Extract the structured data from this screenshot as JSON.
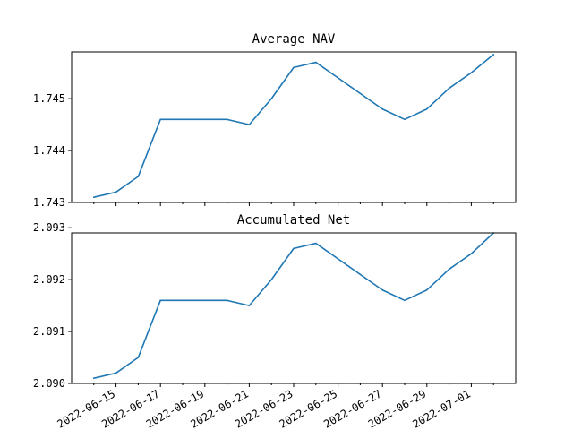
{
  "chart_data": [
    {
      "type": "line",
      "title": "Average NAV",
      "xlabel": "",
      "ylabel": "",
      "x": [
        "2022-06-14",
        "2022-06-15",
        "2022-06-16",
        "2022-06-17",
        "2022-06-20",
        "2022-06-21",
        "2022-06-22",
        "2022-06-23",
        "2022-06-24",
        "2022-06-27",
        "2022-06-28",
        "2022-06-29",
        "2022-06-30",
        "2022-07-01",
        "2022-07-02"
      ],
      "series": [
        {
          "name": "",
          "color": "#1f77b4",
          "values": [
            1.7431,
            1.7432,
            1.7435,
            1.7446,
            1.7446,
            1.7445,
            1.745,
            1.7456,
            1.7457,
            1.7448,
            1.7446,
            1.7448,
            1.7452,
            1.7455,
            1.74585
          ]
        }
      ],
      "xlim": [
        "2022-06-13",
        "2022-07-03"
      ],
      "ylim": [
        1.743,
        1.7459
      ],
      "yticks": [
        1.743,
        1.744,
        1.745
      ],
      "ytick_labels": [
        "1.743",
        "1.744",
        "1.745"
      ],
      "xticks": [
        "2022-06-15",
        "2022-06-17",
        "2022-06-19",
        "2022-06-21",
        "2022-06-23",
        "2022-06-25",
        "2022-06-27",
        "2022-06-29",
        "2022-07-01"
      ],
      "xtick_labels": [],
      "grid": false,
      "legend": "none"
    },
    {
      "type": "line",
      "title": "Accumulated Net",
      "xlabel": "",
      "ylabel": "",
      "x": [
        "2022-06-14",
        "2022-06-15",
        "2022-06-16",
        "2022-06-17",
        "2022-06-20",
        "2022-06-21",
        "2022-06-22",
        "2022-06-23",
        "2022-06-24",
        "2022-06-27",
        "2022-06-28",
        "2022-06-29",
        "2022-06-30",
        "2022-07-01",
        "2022-07-02"
      ],
      "series": [
        {
          "name": "",
          "color": "#1f77b4",
          "values": [
            2.0901,
            2.0902,
            2.0905,
            2.0916,
            2.0916,
            2.0915,
            2.092,
            2.0926,
            2.0927,
            2.0918,
            2.0916,
            2.0918,
            2.0922,
            2.0925,
            2.0929
          ]
        }
      ],
      "xlim": [
        "2022-06-13",
        "2022-07-03"
      ],
      "ylim": [
        2.09,
        2.0929
      ],
      "yticks": [
        2.09,
        2.091,
        2.092,
        2.093
      ],
      "ytick_labels": [
        "2.090",
        "2.091",
        "2.092",
        "2.093"
      ],
      "xticks": [
        "2022-06-15",
        "2022-06-17",
        "2022-06-19",
        "2022-06-21",
        "2022-06-23",
        "2022-06-25",
        "2022-06-27",
        "2022-06-29",
        "2022-07-01"
      ],
      "xtick_labels": [
        "2022-06-15",
        "2022-06-17",
        "2022-06-19",
        "2022-06-21",
        "2022-06-23",
        "2022-06-25",
        "2022-06-27",
        "2022-06-29",
        "2022-07-01"
      ],
      "grid": false,
      "legend": "none"
    }
  ]
}
